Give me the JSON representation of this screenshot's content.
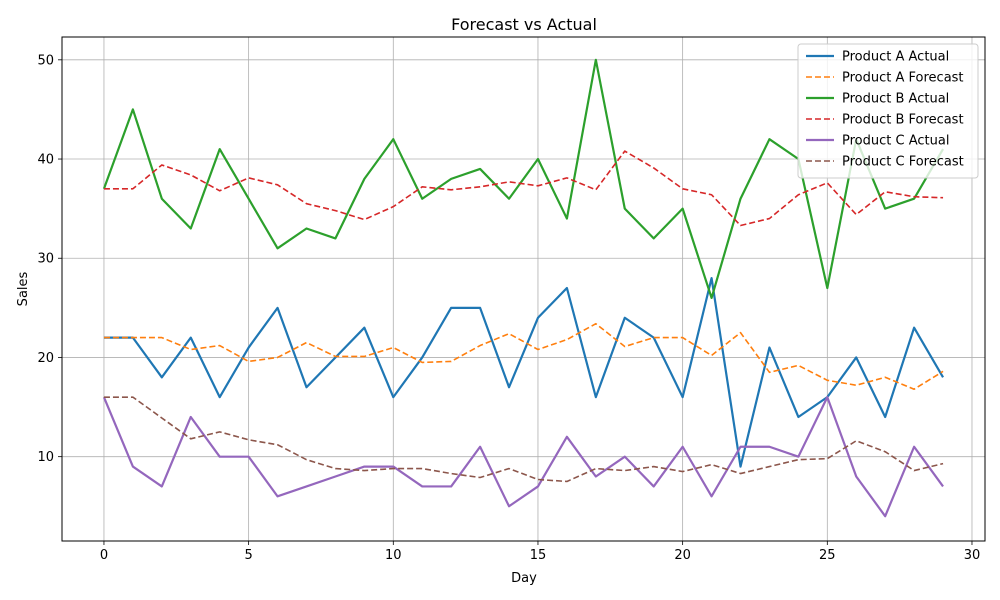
{
  "chart_data": {
    "type": "line",
    "title": "Forecast vs Actual",
    "xlabel": "Day",
    "ylabel": "Sales",
    "xlim": [
      -1.45,
      30.45
    ],
    "ylim": [
      1.5,
      52.3
    ],
    "xticks": [
      0,
      5,
      10,
      15,
      20,
      25,
      30
    ],
    "yticks": [
      10,
      20,
      30,
      40,
      50
    ],
    "grid": true,
    "legend_position": "upper right",
    "x": [
      0,
      1,
      2,
      3,
      4,
      5,
      6,
      7,
      8,
      9,
      10,
      11,
      12,
      13,
      14,
      15,
      16,
      17,
      18,
      19,
      20,
      21,
      22,
      23,
      24,
      25,
      26,
      27,
      28,
      29
    ],
    "series": [
      {
        "name": "Product A Actual",
        "color": "#1f77b4",
        "style": "solid",
        "values": [
          22,
          22,
          18,
          22,
          16,
          21,
          25,
          17,
          20,
          23,
          16,
          20,
          25,
          25,
          17,
          24,
          27,
          16,
          24,
          22,
          16,
          28,
          9,
          21,
          14,
          16,
          20,
          14,
          23,
          18
        ]
      },
      {
        "name": "Product A Forecast",
        "color": "#ff7f0e",
        "style": "dashed",
        "values": [
          22,
          22,
          22,
          20.8,
          21.2,
          19.6,
          20,
          21.5,
          20.1,
          20.1,
          21,
          19.5,
          19.6,
          21.2,
          22.4,
          20.8,
          21.8,
          23.4,
          21.1,
          22,
          22,
          20.2,
          22.5,
          18.5,
          19.2,
          17.7,
          17.2,
          18,
          16.8,
          18.6
        ]
      },
      {
        "name": "Product B Actual",
        "color": "#2ca02c",
        "style": "solid",
        "values": [
          37,
          45,
          36,
          33,
          41,
          36,
          31,
          33,
          32,
          38,
          42,
          36,
          38,
          39,
          36,
          40,
          34,
          50,
          35,
          32,
          35,
          26,
          36,
          42,
          40,
          27,
          42,
          35,
          36,
          41
        ]
      },
      {
        "name": "Product B Forecast",
        "color": "#d62728",
        "style": "dashed",
        "values": [
          37,
          37,
          39.4,
          38.4,
          36.8,
          38.1,
          37.4,
          35.5,
          34.8,
          33.9,
          35.2,
          37.2,
          36.9,
          37.2,
          37.7,
          37.3,
          38.1,
          36.9,
          40.8,
          39.1,
          37,
          36.4,
          33.3,
          34,
          36.4,
          37.6,
          34.4,
          36.7,
          36.2,
          36.1
        ]
      },
      {
        "name": "Product C Actual",
        "color": "#9467bd",
        "style": "solid",
        "values": [
          16,
          9,
          7,
          14,
          10,
          10,
          6,
          7,
          8,
          9,
          9,
          7,
          7,
          11,
          5,
          7,
          12,
          8,
          10,
          7,
          11,
          6,
          11,
          11,
          10,
          16,
          8,
          4,
          11,
          7
        ]
      },
      {
        "name": "Product C Forecast",
        "color": "#8c564b",
        "style": "dashed",
        "values": [
          16,
          16,
          13.9,
          11.8,
          12.5,
          11.7,
          11.2,
          9.7,
          8.8,
          8.6,
          8.8,
          8.8,
          8.3,
          7.9,
          8.8,
          7.7,
          7.5,
          8.8,
          8.6,
          9,
          8.5,
          9.2,
          8.3,
          9,
          9.7,
          9.8,
          11.6,
          10.5,
          8.6,
          9.3
        ]
      }
    ]
  }
}
